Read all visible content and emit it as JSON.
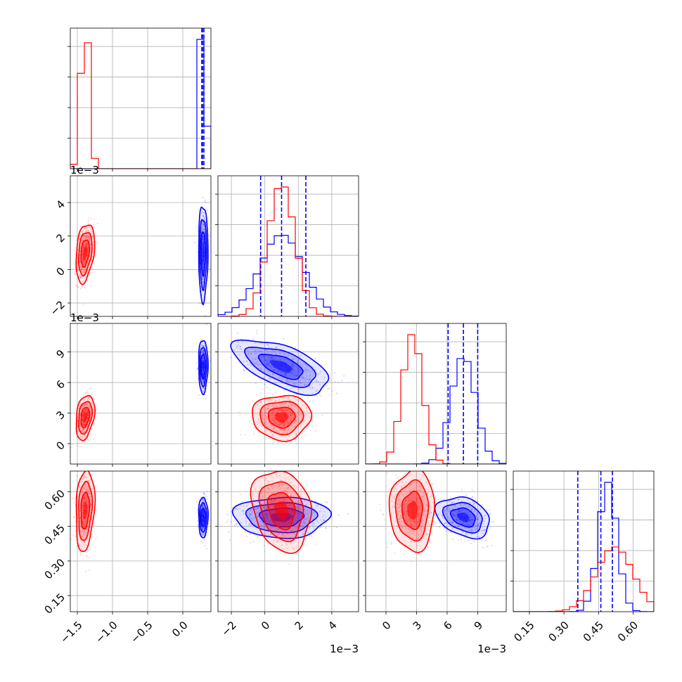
{
  "chart_data": {
    "type": "corner",
    "grid": true,
    "colors": {
      "blue_series": "#0000ff",
      "red_series": "#ff0000"
    },
    "params": [
      {
        "id": "p1",
        "lim": [
          -1.6,
          0.4
        ],
        "ticks": [
          -1.5,
          -1.0,
          -0.5,
          0.0
        ],
        "tick_labels": [
          "−1.5",
          "−1.0",
          "−0.5",
          "0.0"
        ],
        "offset_label": "",
        "blue": {
          "mean": 0.29,
          "sd": 0.03
        },
        "red": {
          "mean": -1.39,
          "sd": 0.06
        }
      },
      {
        "id": "p2",
        "lim": [
          -2.8,
          5.6
        ],
        "ticks": [
          -2,
          0,
          2,
          4
        ],
        "tick_labels": [
          "−2",
          "0",
          "2",
          "4"
        ],
        "offset_label": "1e−3",
        "blue": {
          "mean": 1.0,
          "sd": 1.3
        },
        "red": {
          "mean": 1.0,
          "sd": 0.8
        }
      },
      {
        "id": "p3",
        "lim": [
          -2.0,
          11.8
        ],
        "ticks": [
          0,
          3,
          6,
          9
        ],
        "tick_labels": [
          "0",
          "3",
          "6",
          "9"
        ],
        "offset_label": "1e−3",
        "blue": {
          "mean": 7.6,
          "sd": 1.2
        },
        "red": {
          "mean": 2.6,
          "sd": 1.0
        }
      },
      {
        "id": "p4",
        "lim": [
          0.08,
          0.69
        ],
        "ticks": [
          0.15,
          0.3,
          0.45,
          0.6
        ],
        "tick_labels": [
          "0.15",
          "0.30",
          "0.45",
          "0.60"
        ],
        "offset_label": "",
        "blue": {
          "mean": 0.49,
          "sd": 0.04
        },
        "red": {
          "mean": 0.52,
          "sd": 0.08
        }
      }
    ],
    "diagonal_quantile_lines": {
      "p1": [
        0.27,
        0.28,
        0.3
      ],
      "p2": [
        -0.25,
        1.0,
        2.45
      ],
      "p3": [
        6.1,
        7.6,
        9.0
      ],
      "p4": [
        0.36,
        0.46,
        0.51
      ]
    },
    "correlations": {
      "blue": {
        "p2_p3": -0.6,
        "p2_p4": 0.0,
        "p3_p4": -0.3,
        "p1_p2": 0.0,
        "p1_p3": 0.0,
        "p1_p4": 0.0
      },
      "red": {
        "p2_p3": 0.0,
        "p2_p4": -0.2,
        "p3_p4": 0.0,
        "p1_p2": 0.3,
        "p1_p3": 0.3,
        "p1_p4": 0.2
      }
    }
  }
}
